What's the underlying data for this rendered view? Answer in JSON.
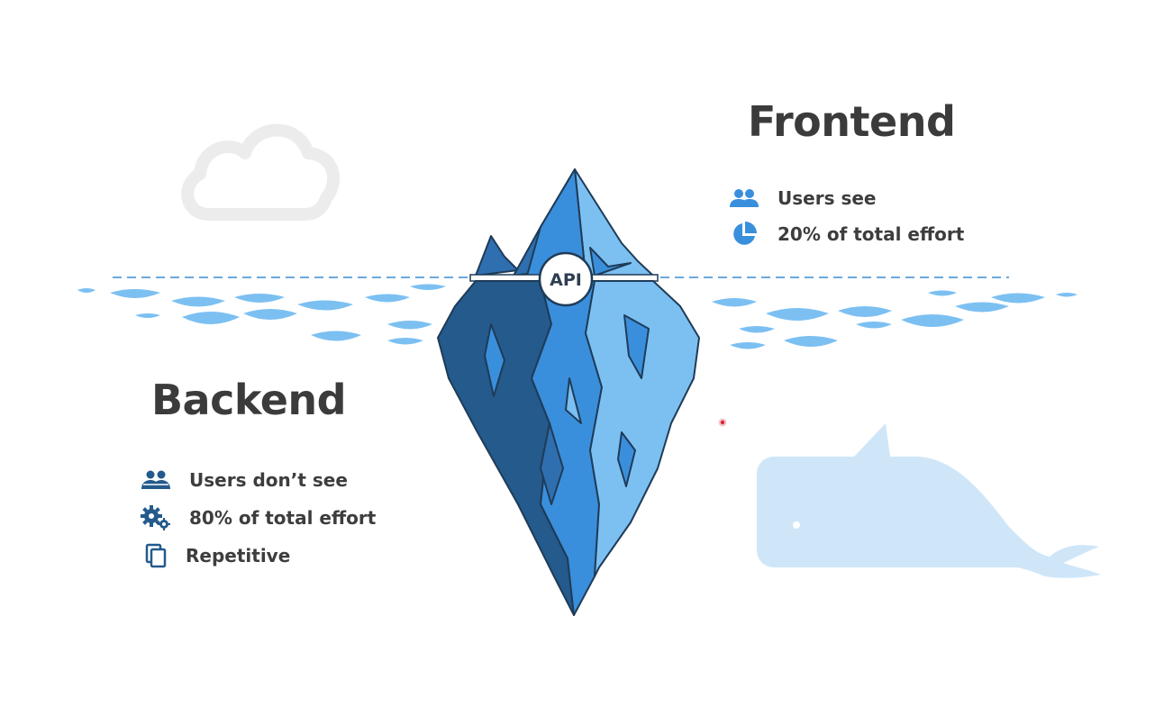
{
  "iceberg": {
    "label": "API"
  },
  "frontend": {
    "title": "Frontend",
    "items": [
      {
        "icon": "users-icon",
        "label": "Users see"
      },
      {
        "icon": "pie-chart-icon",
        "label": "20% of total effort"
      }
    ]
  },
  "backend": {
    "title": "Backend",
    "items": [
      {
        "icon": "users-icon",
        "label": "Users don’t see"
      },
      {
        "icon": "gears-icon",
        "label": "80% of total effort"
      },
      {
        "icon": "copy-icon",
        "label": "Repetitive"
      }
    ]
  },
  "colors": {
    "dark_blue": "#245a8c",
    "mid_blue": "#3a8fdc",
    "light_blue": "#6fb6ee",
    "water": "#7cc0f2",
    "whale": "#cfe6f9",
    "cloud": "#eeeeee",
    "text": "#3b3b3b"
  }
}
